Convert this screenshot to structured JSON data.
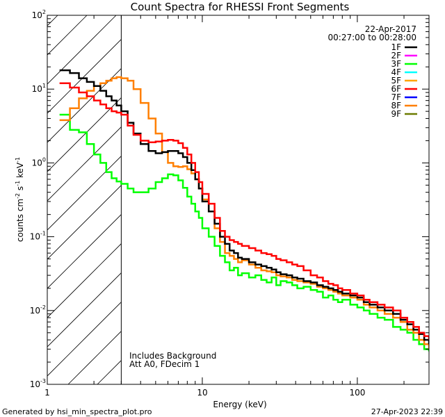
{
  "chart_data": {
    "type": "line",
    "title": "Count Spectra for RHESSI Front Segments",
    "xlabel": "Energy (keV)",
    "ylabel_main": "counts cm",
    "ylabel_sup1": "-2",
    "ylabel_s": " s",
    "ylabel_sup2": "-1",
    "ylabel_kev": " keV",
    "ylabel_sup3": "-1",
    "x_scale": "log",
    "y_scale": "log",
    "xlim": [
      1,
      290
    ],
    "ylim": [
      0.001,
      100
    ],
    "x_ticks": [
      {
        "value": 1,
        "label": "1"
      },
      {
        "value": 10,
        "label": "10"
      },
      {
        "value": 100,
        "label": "100"
      }
    ],
    "y_ticks": [
      {
        "value": 100,
        "base": "10",
        "exp": "2"
      },
      {
        "value": 10,
        "base": "10",
        "exp": "1"
      },
      {
        "value": 1,
        "base": "10",
        "exp": "0"
      },
      {
        "value": 0.1,
        "base": "10",
        "exp": "-1"
      },
      {
        "value": 0.01,
        "base": "10",
        "exp": "-2"
      },
      {
        "value": 0.001,
        "base": "10",
        "exp": "-3"
      }
    ],
    "hatched_region_xmax": 3,
    "date": "22-Apr-2017",
    "time_range": "00:27:00 to 00:28:00",
    "annotation_lines": [
      "Includes Background",
      "Att A0, FDecim 1"
    ],
    "footer_left": "Generated by hsi_min_spectra_plot.pro",
    "footer_right": "27-Apr-2023 22:39",
    "legend": [
      {
        "label": "1F",
        "color": "#000000"
      },
      {
        "label": "2F",
        "color": "#ff00ff"
      },
      {
        "label": "3F",
        "color": "#00ff00"
      },
      {
        "label": "4F",
        "color": "#00ffff"
      },
      {
        "label": "5F",
        "color": "#ffa500"
      },
      {
        "label": "6F",
        "color": "#ff0000"
      },
      {
        "label": "7F",
        "color": "#0000ff"
      },
      {
        "label": "8F",
        "color": "#ff7f00"
      },
      {
        "label": "9F",
        "color": "#6b7b00"
      }
    ],
    "series": [
      {
        "name": "3F",
        "color": "#00ff00",
        "points": [
          [
            1.2,
            4.5
          ],
          [
            1.4,
            2.8
          ],
          [
            1.6,
            2.6
          ],
          [
            1.8,
            1.8
          ],
          [
            2.0,
            1.3
          ],
          [
            2.2,
            1.0
          ],
          [
            2.4,
            0.75
          ],
          [
            2.6,
            0.62
          ],
          [
            2.8,
            0.56
          ],
          [
            3.0,
            0.52
          ],
          [
            3.3,
            0.45
          ],
          [
            3.6,
            0.4
          ],
          [
            4.0,
            0.4
          ],
          [
            4.5,
            0.45
          ],
          [
            5.0,
            0.55
          ],
          [
            5.5,
            0.62
          ],
          [
            6.0,
            0.7
          ],
          [
            6.5,
            0.68
          ],
          [
            7.0,
            0.58
          ],
          [
            7.5,
            0.46
          ],
          [
            8.0,
            0.35
          ],
          [
            8.5,
            0.28
          ],
          [
            9.0,
            0.22
          ],
          [
            9.5,
            0.18
          ],
          [
            10.0,
            0.13
          ],
          [
            11,
            0.1
          ],
          [
            12,
            0.075
          ],
          [
            13,
            0.055
          ],
          [
            14,
            0.045
          ],
          [
            15,
            0.035
          ],
          [
            16,
            0.038
          ],
          [
            17,
            0.03
          ],
          [
            18,
            0.032
          ],
          [
            20,
            0.028
          ],
          [
            22,
            0.03
          ],
          [
            24,
            0.026
          ],
          [
            26,
            0.024
          ],
          [
            28,
            0.028
          ],
          [
            30,
            0.022
          ],
          [
            32,
            0.025
          ],
          [
            35,
            0.024
          ],
          [
            38,
            0.022
          ],
          [
            41,
            0.02
          ],
          [
            45,
            0.021
          ],
          [
            50,
            0.019
          ],
          [
            55,
            0.018
          ],
          [
            60,
            0.015
          ],
          [
            65,
            0.016
          ],
          [
            70,
            0.014
          ],
          [
            75,
            0.013
          ],
          [
            80,
            0.014
          ],
          [
            90,
            0.012
          ],
          [
            100,
            0.011
          ],
          [
            110,
            0.01
          ],
          [
            120,
            0.009
          ],
          [
            135,
            0.008
          ],
          [
            150,
            0.0075
          ],
          [
            170,
            0.006
          ],
          [
            190,
            0.0055
          ],
          [
            210,
            0.005
          ],
          [
            230,
            0.004
          ],
          [
            250,
            0.0035
          ],
          [
            270,
            0.003
          ],
          [
            290,
            0.0028
          ]
        ]
      },
      {
        "name": "8F",
        "color": "#ff7f00",
        "points": [
          [
            1.2,
            3.8
          ],
          [
            1.4,
            5.5
          ],
          [
            1.6,
            7.5
          ],
          [
            1.8,
            9.5
          ],
          [
            2.0,
            11.0
          ],
          [
            2.2,
            12.0
          ],
          [
            2.4,
            13.0
          ],
          [
            2.6,
            14.0
          ],
          [
            2.8,
            14.5
          ],
          [
            3.0,
            14.0
          ],
          [
            3.3,
            13.0
          ],
          [
            3.6,
            10.0
          ],
          [
            4.0,
            6.5
          ],
          [
            4.5,
            4.0
          ],
          [
            5.0,
            2.5
          ],
          [
            5.5,
            1.4
          ],
          [
            6.0,
            1.0
          ],
          [
            6.5,
            0.9
          ],
          [
            7.0,
            0.88
          ],
          [
            7.5,
            0.9
          ],
          [
            8.0,
            0.82
          ],
          [
            8.5,
            0.72
          ],
          [
            9.0,
            0.6
          ],
          [
            9.5,
            0.45
          ],
          [
            10.0,
            0.32
          ],
          [
            11,
            0.22
          ],
          [
            12,
            0.13
          ],
          [
            13,
            0.085
          ],
          [
            14,
            0.06
          ],
          [
            15,
            0.055
          ],
          [
            16,
            0.05
          ],
          [
            17,
            0.045
          ],
          [
            18,
            0.048
          ],
          [
            20,
            0.042
          ],
          [
            22,
            0.038
          ],
          [
            24,
            0.035
          ],
          [
            26,
            0.034
          ],
          [
            28,
            0.033
          ],
          [
            30,
            0.03
          ],
          [
            32,
            0.029
          ],
          [
            35,
            0.028
          ],
          [
            38,
            0.026
          ],
          [
            41,
            0.025
          ],
          [
            45,
            0.024
          ],
          [
            50,
            0.023
          ],
          [
            55,
            0.021
          ],
          [
            60,
            0.02
          ],
          [
            65,
            0.019
          ],
          [
            70,
            0.018
          ],
          [
            75,
            0.017
          ],
          [
            80,
            0.016
          ],
          [
            90,
            0.015
          ],
          [
            100,
            0.014
          ],
          [
            110,
            0.012
          ],
          [
            120,
            0.011
          ],
          [
            135,
            0.01
          ],
          [
            150,
            0.009
          ],
          [
            170,
            0.008
          ],
          [
            190,
            0.007
          ],
          [
            210,
            0.0055
          ],
          [
            230,
            0.005
          ],
          [
            250,
            0.004
          ],
          [
            270,
            0.0035
          ],
          [
            290,
            0.003
          ]
        ]
      },
      {
        "name": "1F",
        "color": "#000000",
        "points": [
          [
            1.2,
            18.0
          ],
          [
            1.4,
            16.5
          ],
          [
            1.6,
            14.0
          ],
          [
            1.8,
            12.5
          ],
          [
            2.0,
            11.0
          ],
          [
            2.2,
            9.5
          ],
          [
            2.4,
            8.0
          ],
          [
            2.6,
            7.0
          ],
          [
            2.8,
            6.0
          ],
          [
            3.0,
            5.0
          ],
          [
            3.3,
            3.5
          ],
          [
            3.6,
            2.5
          ],
          [
            4.0,
            1.8
          ],
          [
            4.5,
            1.45
          ],
          [
            5.0,
            1.35
          ],
          [
            5.5,
            1.4
          ],
          [
            6.0,
            1.45
          ],
          [
            6.5,
            1.45
          ],
          [
            7.0,
            1.35
          ],
          [
            7.5,
            1.2
          ],
          [
            8.0,
            1.0
          ],
          [
            8.5,
            0.8
          ],
          [
            9.0,
            0.6
          ],
          [
            9.5,
            0.45
          ],
          [
            10.0,
            0.3
          ],
          [
            11,
            0.22
          ],
          [
            12,
            0.15
          ],
          [
            13,
            0.1
          ],
          [
            14,
            0.08
          ],
          [
            15,
            0.065
          ],
          [
            16,
            0.06
          ],
          [
            17,
            0.052
          ],
          [
            18,
            0.05
          ],
          [
            20,
            0.045
          ],
          [
            22,
            0.042
          ],
          [
            24,
            0.04
          ],
          [
            26,
            0.038
          ],
          [
            28,
            0.036
          ],
          [
            30,
            0.033
          ],
          [
            32,
            0.031
          ],
          [
            35,
            0.03
          ],
          [
            38,
            0.028
          ],
          [
            41,
            0.027
          ],
          [
            45,
            0.025
          ],
          [
            50,
            0.024
          ],
          [
            55,
            0.022
          ],
          [
            60,
            0.021
          ],
          [
            65,
            0.02
          ],
          [
            70,
            0.019
          ],
          [
            75,
            0.018
          ],
          [
            80,
            0.017
          ],
          [
            90,
            0.016
          ],
          [
            100,
            0.015
          ],
          [
            110,
            0.013
          ],
          [
            120,
            0.012
          ],
          [
            135,
            0.011
          ],
          [
            150,
            0.01
          ],
          [
            170,
            0.009
          ],
          [
            190,
            0.0075
          ],
          [
            210,
            0.0065
          ],
          [
            230,
            0.0055
          ],
          [
            250,
            0.0048
          ],
          [
            270,
            0.004
          ],
          [
            290,
            0.0035
          ]
        ]
      },
      {
        "name": "6F",
        "color": "#ff0000",
        "points": [
          [
            1.2,
            12.0
          ],
          [
            1.4,
            10.5
          ],
          [
            1.6,
            9.0
          ],
          [
            1.8,
            8.0
          ],
          [
            2.0,
            7.0
          ],
          [
            2.2,
            6.2
          ],
          [
            2.4,
            5.5
          ],
          [
            2.6,
            5.0
          ],
          [
            2.8,
            4.8
          ],
          [
            3.0,
            4.5
          ],
          [
            3.3,
            3.2
          ],
          [
            3.6,
            2.4
          ],
          [
            4.0,
            2.0
          ],
          [
            4.5,
            1.9
          ],
          [
            5.0,
            1.95
          ],
          [
            5.5,
            2.0
          ],
          [
            6.0,
            2.05
          ],
          [
            6.5,
            2.0
          ],
          [
            7.0,
            1.85
          ],
          [
            7.5,
            1.6
          ],
          [
            8.0,
            1.3
          ],
          [
            8.5,
            1.0
          ],
          [
            9.0,
            0.75
          ],
          [
            9.5,
            0.55
          ],
          [
            10.0,
            0.38
          ],
          [
            11,
            0.28
          ],
          [
            12,
            0.18
          ],
          [
            13,
            0.12
          ],
          [
            14,
            0.1
          ],
          [
            15,
            0.09
          ],
          [
            16,
            0.085
          ],
          [
            17,
            0.08
          ],
          [
            18,
            0.075
          ],
          [
            20,
            0.07
          ],
          [
            22,
            0.065
          ],
          [
            24,
            0.06
          ],
          [
            26,
            0.058
          ],
          [
            28,
            0.055
          ],
          [
            30,
            0.05
          ],
          [
            32,
            0.048
          ],
          [
            35,
            0.045
          ],
          [
            38,
            0.042
          ],
          [
            41,
            0.04
          ],
          [
            45,
            0.035
          ],
          [
            50,
            0.03
          ],
          [
            55,
            0.028
          ],
          [
            60,
            0.025
          ],
          [
            65,
            0.023
          ],
          [
            70,
            0.022
          ],
          [
            75,
            0.02
          ],
          [
            80,
            0.019
          ],
          [
            90,
            0.017
          ],
          [
            100,
            0.016
          ],
          [
            110,
            0.014
          ],
          [
            120,
            0.013
          ],
          [
            135,
            0.012
          ],
          [
            150,
            0.011
          ],
          [
            170,
            0.01
          ],
          [
            190,
            0.008
          ],
          [
            210,
            0.007
          ],
          [
            230,
            0.006
          ],
          [
            250,
            0.005
          ],
          [
            270,
            0.0045
          ],
          [
            290,
            0.004
          ]
        ]
      }
    ]
  }
}
